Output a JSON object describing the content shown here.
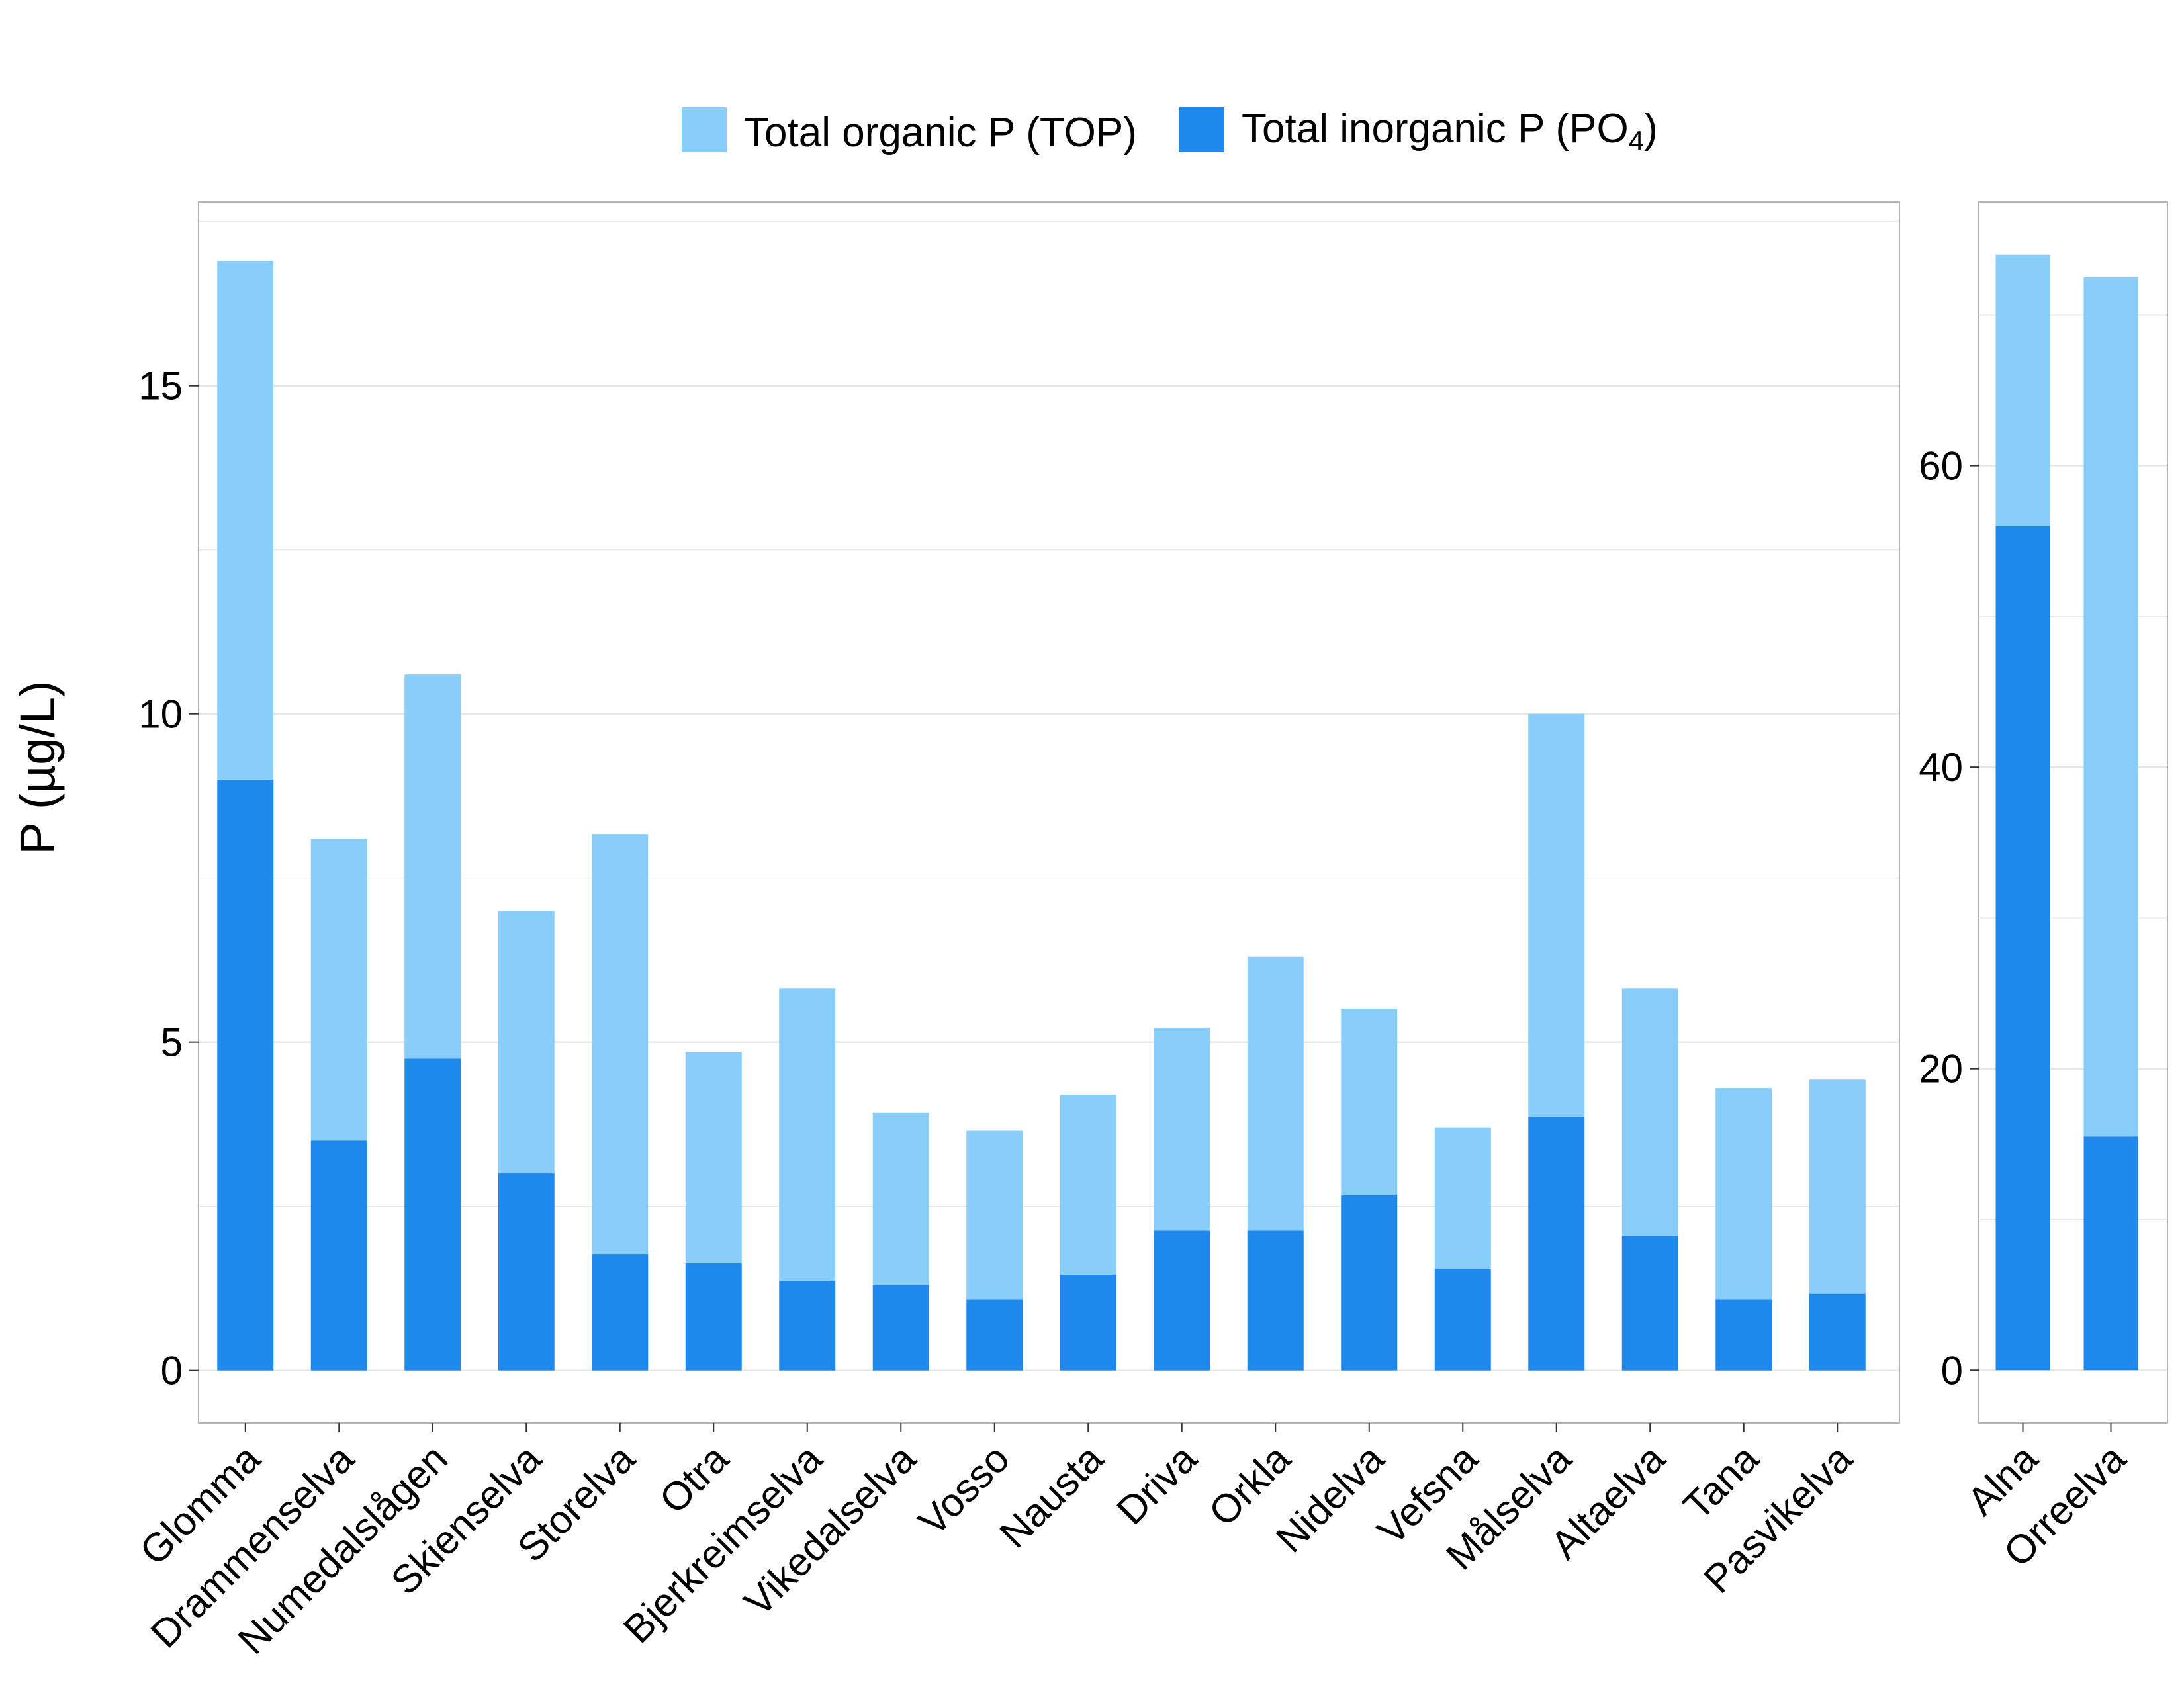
{
  "colors": {
    "organic": "#89CEFA",
    "inorganic": "#1E88ED",
    "grid": "#E6E6E6",
    "panel_border": "#B3B3B3"
  },
  "legend": {
    "placement": "top-center",
    "organic_label": "Total organic P (TOP)",
    "inorganic_label_main": "Total inorganic P (PO",
    "inorganic_label_sub": "4",
    "inorganic_label_close": ")"
  },
  "y_axis_title": "P (µg/L)",
  "chart_data": [
    {
      "type": "bar",
      "stacked": true,
      "categories": [
        "Glomma",
        "Drammenselva",
        "Numedalslågen",
        "Skienselva",
        "Storelva",
        "Otra",
        "Bjerkreimselva",
        "Vikedalselva",
        "Vosso",
        "Nausta",
        "Driva",
        "Orkla",
        "Nidelva",
        "Vefsna",
        "Målselva",
        "Altaelva",
        "Tana",
        "Pasvikelva"
      ],
      "series": [
        {
          "name": "Total inorganic P (PO4)",
          "values": [
            9.0,
            3.5,
            4.75,
            3.0,
            1.77,
            1.63,
            1.37,
            1.3,
            1.08,
            1.46,
            2.13,
            2.13,
            2.67,
            1.54,
            3.87,
            2.05,
            1.08,
            1.17
          ]
        },
        {
          "name": "Total organic P (TOP)",
          "values": [
            7.9,
            4.6,
            5.85,
            4.0,
            6.4,
            3.22,
            4.45,
            2.63,
            2.57,
            2.74,
            3.09,
            4.17,
            2.84,
            2.16,
            6.13,
            3.77,
            3.22,
            3.26
          ]
        }
      ],
      "ylabel": "P (µg/L)",
      "ylim": [
        -0.8,
        17.8
      ],
      "yticks": [
        0,
        5,
        10,
        15
      ],
      "grid": true
    },
    {
      "type": "bar",
      "stacked": true,
      "categories": [
        "Alna",
        "Orreelva"
      ],
      "series": [
        {
          "name": "Total inorganic P (PO4)",
          "values": [
            56.0,
            15.5
          ]
        },
        {
          "name": "Total organic P (TOP)",
          "values": [
            18.0,
            57.0
          ]
        }
      ],
      "ylim": [
        -3.5,
        77.5
      ],
      "yticks": [
        0,
        20,
        40,
        60
      ],
      "grid": true
    }
  ]
}
